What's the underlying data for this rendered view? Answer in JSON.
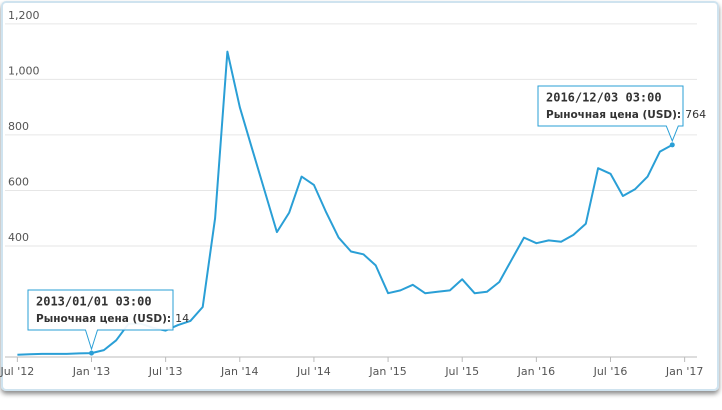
{
  "chart_data": {
    "type": "line",
    "x": [
      "2012-07",
      "2012-08",
      "2012-09",
      "2012-10",
      "2012-11",
      "2012-12",
      "2013-01",
      "2013-02",
      "2013-03",
      "2013-04",
      "2013-05",
      "2013-06",
      "2013-07",
      "2013-08",
      "2013-09",
      "2013-10",
      "2013-11",
      "2013-12",
      "2014-01",
      "2014-02",
      "2014-03",
      "2014-04",
      "2014-05",
      "2014-06",
      "2014-07",
      "2014-08",
      "2014-09",
      "2014-10",
      "2014-11",
      "2014-12",
      "2015-01",
      "2015-02",
      "2015-03",
      "2015-04",
      "2015-05",
      "2015-06",
      "2015-07",
      "2015-08",
      "2015-09",
      "2015-10",
      "2015-11",
      "2015-12",
      "2016-01",
      "2016-02",
      "2016-03",
      "2016-04",
      "2016-05",
      "2016-06",
      "2016-07",
      "2016-08",
      "2016-09",
      "2016-10",
      "2016-11",
      "2016-12"
    ],
    "series": [
      {
        "name": "Рыночная цена (USD)",
        "color": "#2a9fd6",
        "values": [
          8,
          10,
          11,
          11,
          11,
          13,
          14,
          25,
          60,
          120,
          120,
          105,
          95,
          115,
          130,
          180,
          500,
          1100,
          900,
          750,
          600,
          450,
          520,
          650,
          620,
          520,
          430,
          380,
          370,
          330,
          230,
          240,
          260,
          230,
          235,
          240,
          280,
          230,
          235,
          270,
          350,
          430,
          410,
          420,
          415,
          440,
          480,
          680,
          660,
          580,
          605,
          650,
          740,
          764
        ]
      }
    ],
    "xlim": [
      "2012-06",
      "2017-02"
    ],
    "xticks": [
      {
        "value": "2012-07",
        "label": "Jul '12"
      },
      {
        "value": "2013-01",
        "label": "Jan '13"
      },
      {
        "value": "2013-07",
        "label": "Jul '13"
      },
      {
        "value": "2014-01",
        "label": "Jan '14"
      },
      {
        "value": "2014-07",
        "label": "Jul '14"
      },
      {
        "value": "2015-01",
        "label": "Jan '15"
      },
      {
        "value": "2015-07",
        "label": "Jul '15"
      },
      {
        "value": "2016-01",
        "label": "Jan '16"
      },
      {
        "value": "2016-07",
        "label": "Jul '16"
      },
      {
        "value": "2017-01",
        "label": "Jan '17"
      }
    ],
    "ylim": [
      0,
      1250
    ],
    "yticks": [
      {
        "value": 400,
        "label": "400"
      },
      {
        "value": 600,
        "label": "600"
      },
      {
        "value": 800,
        "label": "800"
      },
      {
        "value": 1000,
        "label": "1,000"
      },
      {
        "value": 1200,
        "label": "1,200"
      }
    ],
    "grid": true,
    "annotations": [
      {
        "date": "2013/01/01 03:00",
        "label": "Рыночная цена (USD):",
        "x": "2013-01",
        "value": 14
      },
      {
        "date": "2016/12/03 03:00",
        "label": "Рыночная цена (USD):",
        "x": "2016-12",
        "value": 764
      }
    ]
  }
}
